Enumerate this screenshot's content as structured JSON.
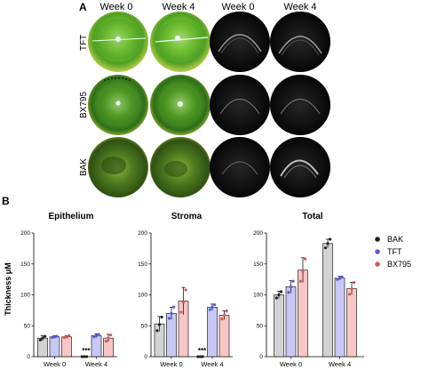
{
  "panel_a": {
    "letter": "A",
    "column_labels": [
      "Week 0",
      "Week 4",
      "Week 0",
      "Week 4"
    ],
    "row_labels": [
      "TFT",
      "BX795",
      "BAK"
    ]
  },
  "panel_b": {
    "letter": "B",
    "ylabel": "Thickness μM"
  },
  "colors": {
    "BAK_fill": "#d3d3d3",
    "TFT_fill": "#c8c8f4",
    "BX795_fill": "#f7c6c6",
    "BAK_point": "#222222",
    "TFT_point": "#5a5ad6",
    "BX795_point": "#d95555",
    "fluorescein_green": "#7ec43a",
    "oct_dark": "#111111"
  },
  "chart_data": [
    {
      "type": "bar",
      "title": "Epithelium",
      "categories": [
        "Week 0",
        "Week 4"
      ],
      "ylim": [
        0,
        200
      ],
      "yticks": [
        "0",
        "50",
        "100",
        "150",
        "200"
      ],
      "series": [
        {
          "name": "BAK",
          "values": [
            30,
            0
          ],
          "errors": [
            4,
            0
          ],
          "points": [
            [
              27,
              30,
              33
            ],
            [
              0,
              0,
              0
            ]
          ]
        },
        {
          "name": "TFT",
          "values": [
            32,
            34
          ],
          "errors": [
            2,
            3
          ],
          "points": [
            [
              31,
              32,
              33
            ],
            [
              32,
              34,
              36
            ]
          ]
        },
        {
          "name": "BX795",
          "values": [
            32,
            30
          ],
          "errors": [
            2,
            6
          ],
          "points": [
            [
              31,
              32,
              34
            ],
            [
              25,
              30,
              35
            ]
          ]
        }
      ],
      "annotations": [
        {
          "text": "***",
          "category": "Week 4",
          "series": "BAK"
        }
      ]
    },
    {
      "type": "bar",
      "title": "Stroma",
      "categories": [
        "Week 0",
        "Week 4"
      ],
      "ylim": [
        0,
        200
      ],
      "yticks": [
        "0",
        "50",
        "100",
        "150",
        "200"
      ],
      "series": [
        {
          "name": "BAK",
          "values": [
            53,
            0
          ],
          "errors": [
            12,
            0
          ],
          "points": [
            [
              42,
              52,
              64
            ],
            [
              0,
              0,
              0
            ]
          ]
        },
        {
          "name": "TFT",
          "values": [
            70,
            80
          ],
          "errors": [
            10,
            5
          ],
          "points": [
            [
              62,
              70,
              80
            ],
            [
              76,
              80,
              84
            ]
          ]
        },
        {
          "name": "BX795",
          "values": [
            90,
            67
          ],
          "errors": [
            22,
            7
          ],
          "points": [
            [
              72,
              88,
              108
            ],
            [
              61,
              67,
              74
            ]
          ]
        }
      ],
      "annotations": [
        {
          "text": "***",
          "category": "Week 4",
          "series": "BAK"
        }
      ]
    },
    {
      "type": "bar",
      "title": "Total",
      "categories": [
        "Week 0",
        "Week 4"
      ],
      "ylim": [
        0,
        200
      ],
      "yticks": [
        "0",
        "50",
        "100",
        "150",
        "200"
      ],
      "series": [
        {
          "name": "BAK",
          "values": [
            100,
            183
          ],
          "errors": [
            6,
            7
          ],
          "points": [
            [
              95,
              100,
              105
            ],
            [
              176,
              183,
              190
            ]
          ]
        },
        {
          "name": "TFT",
          "values": [
            113,
            127
          ],
          "errors": [
            10,
            3
          ],
          "points": [
            [
              104,
              113,
              122
            ],
            [
              125,
              127,
              129
            ]
          ]
        },
        {
          "name": "BX795",
          "values": [
            140,
            110
          ],
          "errors": [
            20,
            10
          ],
          "points": [
            [
              122,
              138,
              158
            ],
            [
              101,
              110,
              120
            ]
          ]
        }
      ],
      "annotations": []
    }
  ],
  "legend": [
    "BAK",
    "TFT",
    "BX795"
  ]
}
